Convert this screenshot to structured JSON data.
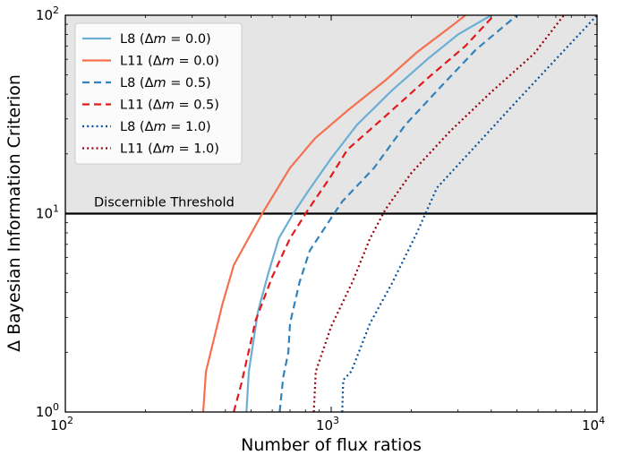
{
  "chart_data": {
    "type": "line",
    "xlabel": "Number of flux ratios",
    "ylabel": "Δ Bayesian Information Criterion",
    "xscale": "log",
    "yscale": "log",
    "xlim": [
      100,
      10000
    ],
    "ylim": [
      1,
      100
    ],
    "x_ticks": [
      {
        "value": 100,
        "base": "10",
        "exp": "2"
      },
      {
        "value": 1000,
        "base": "10",
        "exp": "3"
      },
      {
        "value": 10000,
        "base": "10",
        "exp": "4"
      }
    ],
    "y_ticks": [
      {
        "value": 1,
        "base": "10",
        "exp": "0"
      },
      {
        "value": 10,
        "base": "10",
        "exp": "1"
      },
      {
        "value": 100,
        "base": "10",
        "exp": "2"
      }
    ],
    "threshold": {
      "value": 10,
      "label": "Discernible Threshold",
      "shade_color": "#e5e5e5"
    },
    "legend_position": "top-left",
    "series": [
      {
        "name": "L8 (Δm = 0.0)",
        "label_main": "L8 (Δ",
        "label_var": "m",
        "label_rest": " = 0.0)",
        "color": "#6baed6",
        "style": "solid",
        "points": [
          [
            480,
            1.0
          ],
          [
            490,
            1.6
          ],
          [
            530,
            3.2
          ],
          [
            580,
            5.0
          ],
          [
            635,
            7.5
          ],
          [
            720,
            10.0
          ],
          [
            820,
            13.0
          ],
          [
            1000,
            19.0
          ],
          [
            1250,
            28.0
          ],
          [
            1700,
            42.0
          ],
          [
            2300,
            60.0
          ],
          [
            3000,
            80.0
          ],
          [
            4000,
            100.0
          ]
        ]
      },
      {
        "name": "L11 (Δm = 0.0)",
        "label_main": "L11 (Δ",
        "label_var": "m",
        "label_rest": " = 0.0)",
        "color": "#f4704f",
        "style": "solid",
        "points": [
          [
            330,
            1.0
          ],
          [
            338,
            1.6
          ],
          [
            390,
            3.5
          ],
          [
            430,
            5.5
          ],
          [
            550,
            10.0
          ],
          [
            700,
            17.0
          ],
          [
            870,
            24.0
          ],
          [
            1150,
            33.0
          ],
          [
            1600,
            47.0
          ],
          [
            2100,
            65.0
          ],
          [
            2800,
            87.0
          ],
          [
            3200,
            100.0
          ]
        ]
      },
      {
        "name": "L8 (Δm = 0.5)",
        "label_main": "L8 (Δ",
        "label_var": "m",
        "label_rest": " = 0.5)",
        "color": "#3182bd",
        "style": "dashed",
        "points": [
          [
            640,
            1.0
          ],
          [
            660,
            1.5
          ],
          [
            690,
            2.0
          ],
          [
            700,
            2.8
          ],
          [
            760,
            4.5
          ],
          [
            830,
            6.5
          ],
          [
            1000,
            9.5
          ],
          [
            1100,
            11.5
          ],
          [
            1450,
            17.0
          ],
          [
            1900,
            28.0
          ],
          [
            2600,
            44.0
          ],
          [
            3500,
            67.0
          ],
          [
            5000,
            100.0
          ]
        ]
      },
      {
        "name": "L11 (Δm = 0.5)",
        "label_main": "L11 (Δ",
        "label_var": "m",
        "label_rest": " = 0.5)",
        "color": "#e31a1c",
        "style": "dashed",
        "points": [
          [
            430,
            1.0
          ],
          [
            460,
            1.4
          ],
          [
            520,
            2.9
          ],
          [
            600,
            4.8
          ],
          [
            700,
            7.5
          ],
          [
            820,
            10.5
          ],
          [
            1000,
            15.5
          ],
          [
            1150,
            21.0
          ],
          [
            1600,
            31.0
          ],
          [
            2300,
            48.0
          ],
          [
            3200,
            70.0
          ],
          [
            4100,
            100.0
          ]
        ]
      },
      {
        "name": "L8 (Δm = 1.0)",
        "label_main": "L8 (Δ",
        "label_var": "m",
        "label_rest": " = 1.0)",
        "color": "#08519c",
        "style": "dotted",
        "points": [
          [
            1100,
            1.0
          ],
          [
            1110,
            1.45
          ],
          [
            1190,
            1.6
          ],
          [
            1400,
            2.8
          ],
          [
            1700,
            4.5
          ],
          [
            2100,
            8.0
          ],
          [
            2500,
            13.5
          ],
          [
            3500,
            22.0
          ],
          [
            5000,
            37.0
          ],
          [
            7000,
            60.0
          ],
          [
            10000,
            100.0
          ]
        ]
      },
      {
        "name": "L11 (Δm = 1.0)",
        "label_main": "L11 (Δ",
        "label_var": "m",
        "label_rest": " = 1.0)",
        "color": "#99000d",
        "style": "dotted",
        "points": [
          [
            860,
            1.0
          ],
          [
            875,
            1.6
          ],
          [
            1000,
            2.7
          ],
          [
            1200,
            4.5
          ],
          [
            1400,
            7.5
          ],
          [
            1600,
            10.5
          ],
          [
            2000,
            16.0
          ],
          [
            2800,
            26.0
          ],
          [
            4000,
            41.0
          ],
          [
            5800,
            64.0
          ],
          [
            7500,
            100.0
          ]
        ]
      }
    ]
  }
}
